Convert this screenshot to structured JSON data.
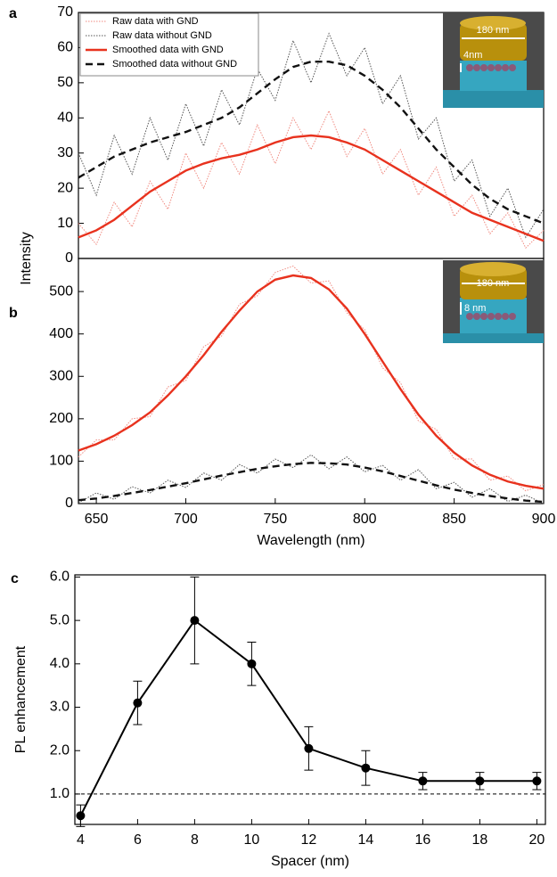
{
  "chart_data": [
    {
      "type": "line",
      "panel_label": "a",
      "ylabel": "Intensity",
      "x": [
        640,
        650,
        660,
        670,
        680,
        690,
        700,
        710,
        720,
        730,
        740,
        750,
        760,
        770,
        780,
        790,
        800,
        810,
        820,
        830,
        840,
        850,
        860,
        870,
        880,
        890,
        900
      ],
      "xlim": [
        640,
        900
      ],
      "ylim": [
        0,
        70
      ],
      "yticks": [
        0,
        10,
        20,
        30,
        40,
        50,
        60,
        70
      ],
      "legend": "upper left",
      "inset": {
        "width_label": "180 nm",
        "gap_label": "4nm"
      },
      "series": [
        {
          "name": "Raw data with GND",
          "color": "#f08a80",
          "dash": "dotted",
          "values": [
            10,
            4,
            16,
            9,
            22,
            14,
            30,
            20,
            33,
            24,
            38,
            27,
            40,
            31,
            42,
            29,
            37,
            24,
            31,
            18,
            26,
            12,
            18,
            7,
            13,
            3,
            8
          ]
        },
        {
          "name": "Raw data without GND",
          "color": "#555555",
          "dash": "dotted",
          "values": [
            30,
            18,
            35,
            24,
            40,
            28,
            44,
            32,
            48,
            38,
            54,
            45,
            62,
            50,
            64,
            52,
            60,
            44,
            52,
            34,
            40,
            22,
            28,
            12,
            20,
            6,
            14
          ]
        },
        {
          "name": "Smoothed data with GND",
          "color": "#e8321e",
          "dash": "solid",
          "values": [
            6,
            8,
            11,
            15,
            19,
            22,
            25,
            27,
            28.5,
            29.5,
            31,
            33,
            34.5,
            35,
            34.5,
            33,
            31,
            28,
            25,
            22,
            19,
            16,
            13,
            11,
            9,
            7,
            5
          ]
        },
        {
          "name": "Smoothed data without GND",
          "color": "#111111",
          "dash": "dashed",
          "values": [
            23,
            26,
            29,
            31,
            33,
            34.5,
            36,
            38,
            40,
            43,
            47,
            51,
            54.5,
            56,
            56,
            55,
            52,
            48,
            43,
            37,
            31,
            26,
            21,
            17,
            14,
            12,
            10
          ]
        }
      ]
    },
    {
      "type": "line",
      "panel_label": "b",
      "xlabel": "Wavelength (nm)",
      "x": [
        640,
        650,
        660,
        670,
        680,
        690,
        700,
        710,
        720,
        730,
        740,
        750,
        760,
        770,
        780,
        790,
        800,
        810,
        820,
        830,
        840,
        850,
        860,
        870,
        880,
        890,
        900
      ],
      "xlim": [
        640,
        900
      ],
      "xticks": [
        650,
        700,
        750,
        800,
        850,
        900
      ],
      "ylim": [
        0,
        578
      ],
      "yticks": [
        0,
        100,
        200,
        300,
        400,
        500
      ],
      "inset": {
        "width_label": "180 nm",
        "gap_label": "8 nm"
      },
      "series": [
        {
          "color": "#f08a80",
          "dash": "dotted",
          "values": [
            110,
            150,
            150,
            200,
            205,
            275,
            290,
            370,
            395,
            470,
            490,
            545,
            560,
            520,
            525,
            450,
            410,
            320,
            285,
            195,
            175,
            105,
            105,
            55,
            65,
            30,
            45
          ]
        },
        {
          "color": "#555555",
          "dash": "dotted",
          "values": [
            2,
            25,
            10,
            40,
            25,
            55,
            38,
            72,
            55,
            92,
            72,
            105,
            85,
            115,
            82,
            110,
            75,
            90,
            55,
            80,
            35,
            50,
            15,
            35,
            5,
            20,
            0
          ]
        },
        {
          "color": "#e8321e",
          "dash": "solid",
          "values": [
            125,
            140,
            160,
            185,
            215,
            255,
            300,
            350,
            405,
            455,
            500,
            528,
            538,
            532,
            505,
            460,
            400,
            335,
            270,
            210,
            160,
            120,
            90,
            68,
            52,
            42,
            35
          ]
        },
        {
          "color": "#111111",
          "dash": "dashed",
          "values": [
            8,
            12,
            18,
            25,
            32,
            40,
            48,
            57,
            66,
            74,
            82,
            88,
            93,
            96,
            95,
            92,
            85,
            76,
            65,
            54,
            43,
            33,
            25,
            18,
            12,
            7,
            4
          ]
        }
      ]
    },
    {
      "type": "errorline",
      "panel_label": "c",
      "xlabel": "Spacer (nm)",
      "ylabel": "PL enhancement",
      "x": [
        4,
        6,
        8,
        10,
        12,
        14,
        16,
        18,
        20
      ],
      "xlim": [
        3.8,
        20.3
      ],
      "xticks": [
        4,
        6,
        8,
        10,
        12,
        14,
        16,
        18,
        20
      ],
      "ylim": [
        0.3,
        6.05
      ],
      "yticks": [
        {
          "value": 1,
          "label": "1.0"
        },
        {
          "value": 2,
          "label": "2.0"
        },
        {
          "value": 3,
          "label": "3.0"
        },
        {
          "value": 4,
          "label": "4.0"
        },
        {
          "value": 5,
          "label": "5.0"
        },
        {
          "value": 6,
          "label": "6.0"
        }
      ],
      "reference_line": 1,
      "color": "#000000",
      "values": [
        0.5,
        3.1,
        5.0,
        4.0,
        2.05,
        1.6,
        1.3,
        1.3,
        1.3
      ],
      "errors": [
        0.25,
        0.5,
        1.0,
        0.5,
        0.5,
        0.4,
        0.2,
        0.2,
        0.2
      ]
    }
  ]
}
